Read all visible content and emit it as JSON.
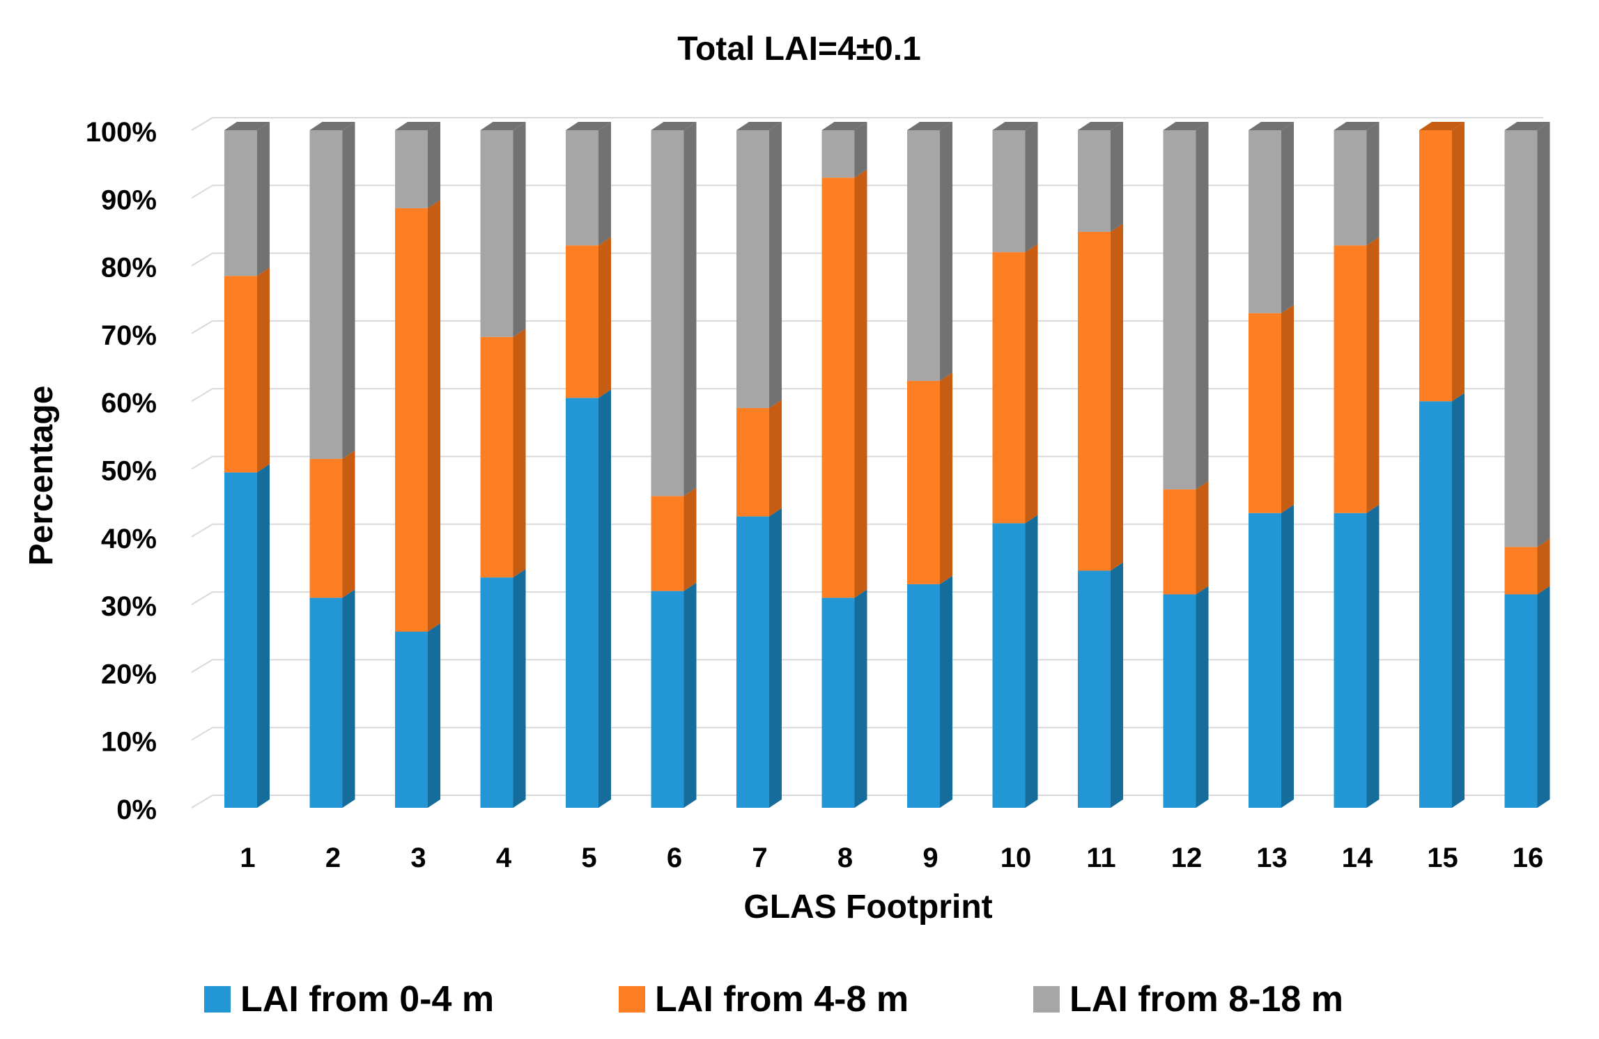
{
  "chart_data": {
    "type": "bar",
    "stacked": true,
    "percent_stacked": true,
    "title": "Total LAI=4±0.1",
    "xlabel": "GLAS Footprint",
    "ylabel": "Percentage",
    "categories": [
      "1",
      "2",
      "3",
      "4",
      "5",
      "6",
      "7",
      "8",
      "9",
      "10",
      "11",
      "12",
      "13",
      "14",
      "15",
      "16"
    ],
    "y_ticks": [
      "0%",
      "10%",
      "20%",
      "30%",
      "40%",
      "50%",
      "60%",
      "70%",
      "80%",
      "90%",
      "100%"
    ],
    "ylim": [
      0,
      100
    ],
    "grid": true,
    "legend_position": "bottom",
    "series": [
      {
        "name": "LAI from 0-4 m",
        "color": "#2397d5",
        "side_color": "#166d9c",
        "values": [
          49.5,
          31,
          26,
          34,
          60.5,
          32,
          43,
          31,
          33,
          42,
          35,
          31.5,
          43.5,
          43.5,
          60,
          31.5
        ]
      },
      {
        "name": "LAI from 4-8 m",
        "color": "#fe7f23",
        "side_color": "#c65d12",
        "values": [
          29,
          20.5,
          62.5,
          35.5,
          22.5,
          14,
          16,
          62,
          30,
          40,
          50,
          15.5,
          29.5,
          39.5,
          40,
          7
        ]
      },
      {
        "name": "LAI from 8-18 m",
        "color": "#a6a6a6",
        "side_color": "#727272",
        "values": [
          21.5,
          48.5,
          11.5,
          30.5,
          17,
          54,
          41,
          7,
          37,
          18,
          15,
          53,
          27,
          17,
          0,
          61.5
        ]
      }
    ]
  }
}
